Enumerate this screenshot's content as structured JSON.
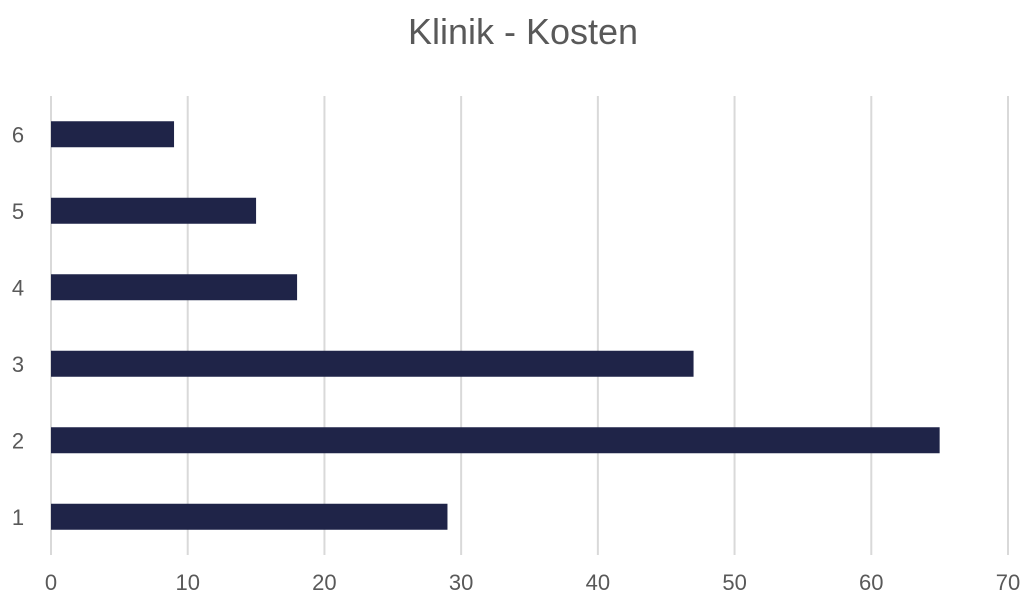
{
  "chart_data": {
    "type": "bar",
    "orientation": "horizontal",
    "title": "Klinik - Kosten",
    "xlabel": "",
    "ylabel": "",
    "categories": [
      "1",
      "2",
      "3",
      "4",
      "5",
      "6"
    ],
    "values": [
      29,
      65,
      47,
      18,
      15,
      9
    ],
    "xlim": [
      0,
      70
    ],
    "x_ticks": [
      "0",
      "10",
      "20",
      "30",
      "40",
      "50",
      "60",
      "70"
    ],
    "grid": "vertical",
    "legend": "none",
    "colors": {
      "bar": "#1f2448",
      "grid": "#d9d9d9",
      "text": "#595959"
    }
  }
}
